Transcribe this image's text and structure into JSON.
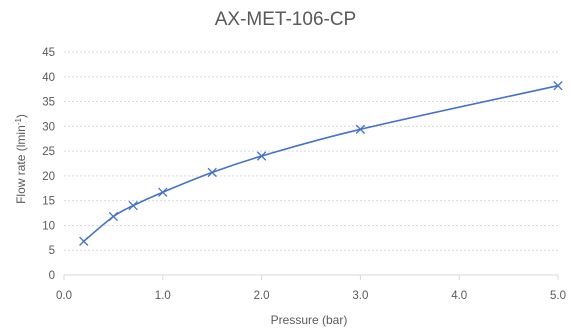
{
  "chart_data": {
    "type": "line",
    "title": "AX-MET-106-CP",
    "xlabel": "Pressure (bar)",
    "ylabel": "Flow rate (lmin",
    "ylabel_superscript": "-1",
    "ylabel_suffix": ")",
    "xlim": [
      0.0,
      5.0
    ],
    "ylim": [
      0,
      45
    ],
    "x_ticks": [
      "0.0",
      "1.0",
      "2.0",
      "3.0",
      "4.0",
      "5.0"
    ],
    "y_ticks": [
      "0",
      "5",
      "10",
      "15",
      "20",
      "25",
      "30",
      "35",
      "40",
      "45"
    ],
    "grid": true,
    "legend": "none",
    "series": [
      {
        "color": "#4472c4",
        "marker": "x",
        "x": [
          0.2,
          0.5,
          0.7,
          1.0,
          1.5,
          2.0,
          3.0,
          5.0
        ],
        "y": [
          6.8,
          11.8,
          14.0,
          16.7,
          20.7,
          24.0,
          29.4,
          38.2
        ]
      }
    ]
  }
}
